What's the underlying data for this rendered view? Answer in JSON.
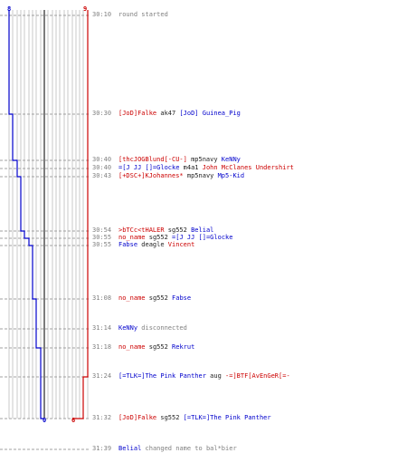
{
  "score": {
    "blue_start": "8",
    "red_start": "9",
    "blue_end": "0",
    "red_end": "6"
  },
  "colors": {
    "blue": "#0000cc",
    "red": "#cc0000",
    "grid": "#c8c8c8",
    "dash": "#a0a0a0",
    "center": "#505050",
    "muted": "#808080"
  },
  "events": [
    {
      "time": "30:10",
      "parts": [
        {
          "t": "round started",
          "c": "gray"
        }
      ]
    },
    {
      "time": "30:30",
      "parts": [
        {
          "t": "[JoD]Falke",
          "c": "red"
        },
        {
          "t": " ak47 ",
          "c": "black"
        },
        {
          "t": "[JoD] Guinea_Pig",
          "c": "blue"
        }
      ]
    },
    {
      "time": "30:40",
      "parts": [
        {
          "t": "[thcJOGBlund[-CU-]",
          "c": "red"
        },
        {
          "t": " mp5navy ",
          "c": "black"
        },
        {
          "t": "KeNNy",
          "c": "blue"
        }
      ]
    },
    {
      "time": "30:40",
      "parts": [
        {
          "t": "=[J JJ []=Glocke",
          "c": "blue"
        },
        {
          "t": " m4a1 ",
          "c": "black"
        },
        {
          "t": "John McClanes Undershirt",
          "c": "red"
        }
      ]
    },
    {
      "time": "30:43",
      "parts": [
        {
          "t": "[+DSC+]KJohannes*",
          "c": "red"
        },
        {
          "t": " mp5navy ",
          "c": "black"
        },
        {
          "t": "Mp5-Kid",
          "c": "blue"
        }
      ]
    },
    {
      "time": "30:54",
      "parts": [
        {
          "t": ">bTCc<tHALER",
          "c": "red"
        },
        {
          "t": " sg552 ",
          "c": "black"
        },
        {
          "t": "Belial",
          "c": "blue"
        }
      ]
    },
    {
      "time": "30:55",
      "parts": [
        {
          "t": "no_name",
          "c": "red"
        },
        {
          "t": " sg552 ",
          "c": "black"
        },
        {
          "t": "=[J JJ []=Glocke",
          "c": "blue"
        }
      ]
    },
    {
      "time": "30:55",
      "parts": [
        {
          "t": "Fabse",
          "c": "blue"
        },
        {
          "t": " deagle ",
          "c": "black"
        },
        {
          "t": "Vincent",
          "c": "red"
        }
      ]
    },
    {
      "time": "31:08",
      "parts": [
        {
          "t": "no_name",
          "c": "red"
        },
        {
          "t": " sg552 ",
          "c": "black"
        },
        {
          "t": "Fabse",
          "c": "blue"
        }
      ]
    },
    {
      "time": "31:14",
      "parts": [
        {
          "t": "KeNNy",
          "c": "blue"
        },
        {
          "t": " disconnected",
          "c": "gray"
        }
      ]
    },
    {
      "time": "31:18",
      "parts": [
        {
          "t": "no_name",
          "c": "red"
        },
        {
          "t": " sg552 ",
          "c": "black"
        },
        {
          "t": "Rekrut",
          "c": "blue"
        }
      ]
    },
    {
      "time": "31:24",
      "parts": [
        {
          "t": "[=TLK=]The Pink Panther",
          "c": "blue"
        },
        {
          "t": " aug ",
          "c": "black"
        },
        {
          "t": "-=]BTF[AvEnGeR[=-",
          "c": "red"
        }
      ]
    },
    {
      "time": "31:32",
      "parts": [
        {
          "t": "[JoD]Falke",
          "c": "red"
        },
        {
          "t": " sg552 ",
          "c": "black"
        },
        {
          "t": "[=TLK=]The Pink Panther",
          "c": "blue"
        }
      ]
    },
    {
      "time": "31:39",
      "parts": [
        {
          "t": "Belial",
          "c": "blue"
        },
        {
          "t": " changed name to bal*bier",
          "c": "gray"
        }
      ]
    }
  ]
}
